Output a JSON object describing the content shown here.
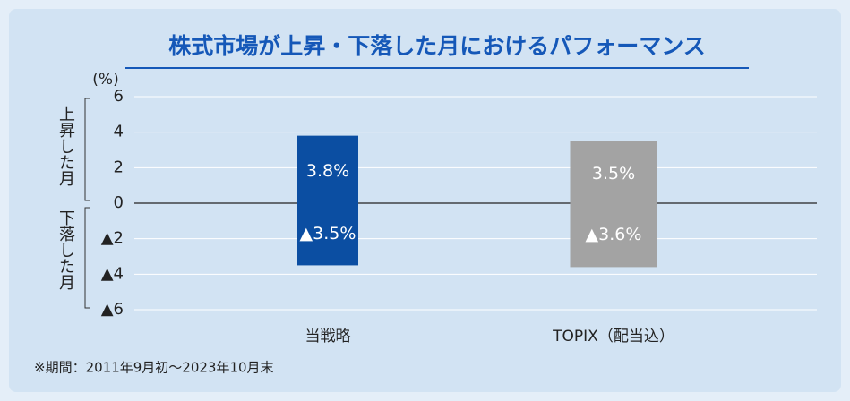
{
  "chart_data": {
    "type": "bar",
    "title": "株式市場が上昇・下落した月におけるパフォーマンス",
    "unit_label": "(%)",
    "categories": [
      "当戦略",
      "TOPIX（配当込）"
    ],
    "colors": [
      "#0b4ea2",
      "#a3a3a3"
    ],
    "series": [
      {
        "name": "上昇した月",
        "values": [
          3.8,
          3.5
        ],
        "value_labels": [
          "3.8%",
          "3.5%"
        ]
      },
      {
        "name": "下落した月",
        "values": [
          -3.5,
          -3.6
        ],
        "value_labels": [
          "▲3.5%",
          "▲3.6%"
        ]
      }
    ],
    "ylim": [
      -6,
      6
    ],
    "yticks": [
      6,
      4,
      2,
      0,
      {
        "value": -2,
        "label": "▲2"
      },
      {
        "value": -4,
        "label": "▲4"
      },
      {
        "value": -6,
        "label": "▲6"
      }
    ],
    "grid": true,
    "footnote": "※期間：2011年9月初～2023年10月末"
  }
}
